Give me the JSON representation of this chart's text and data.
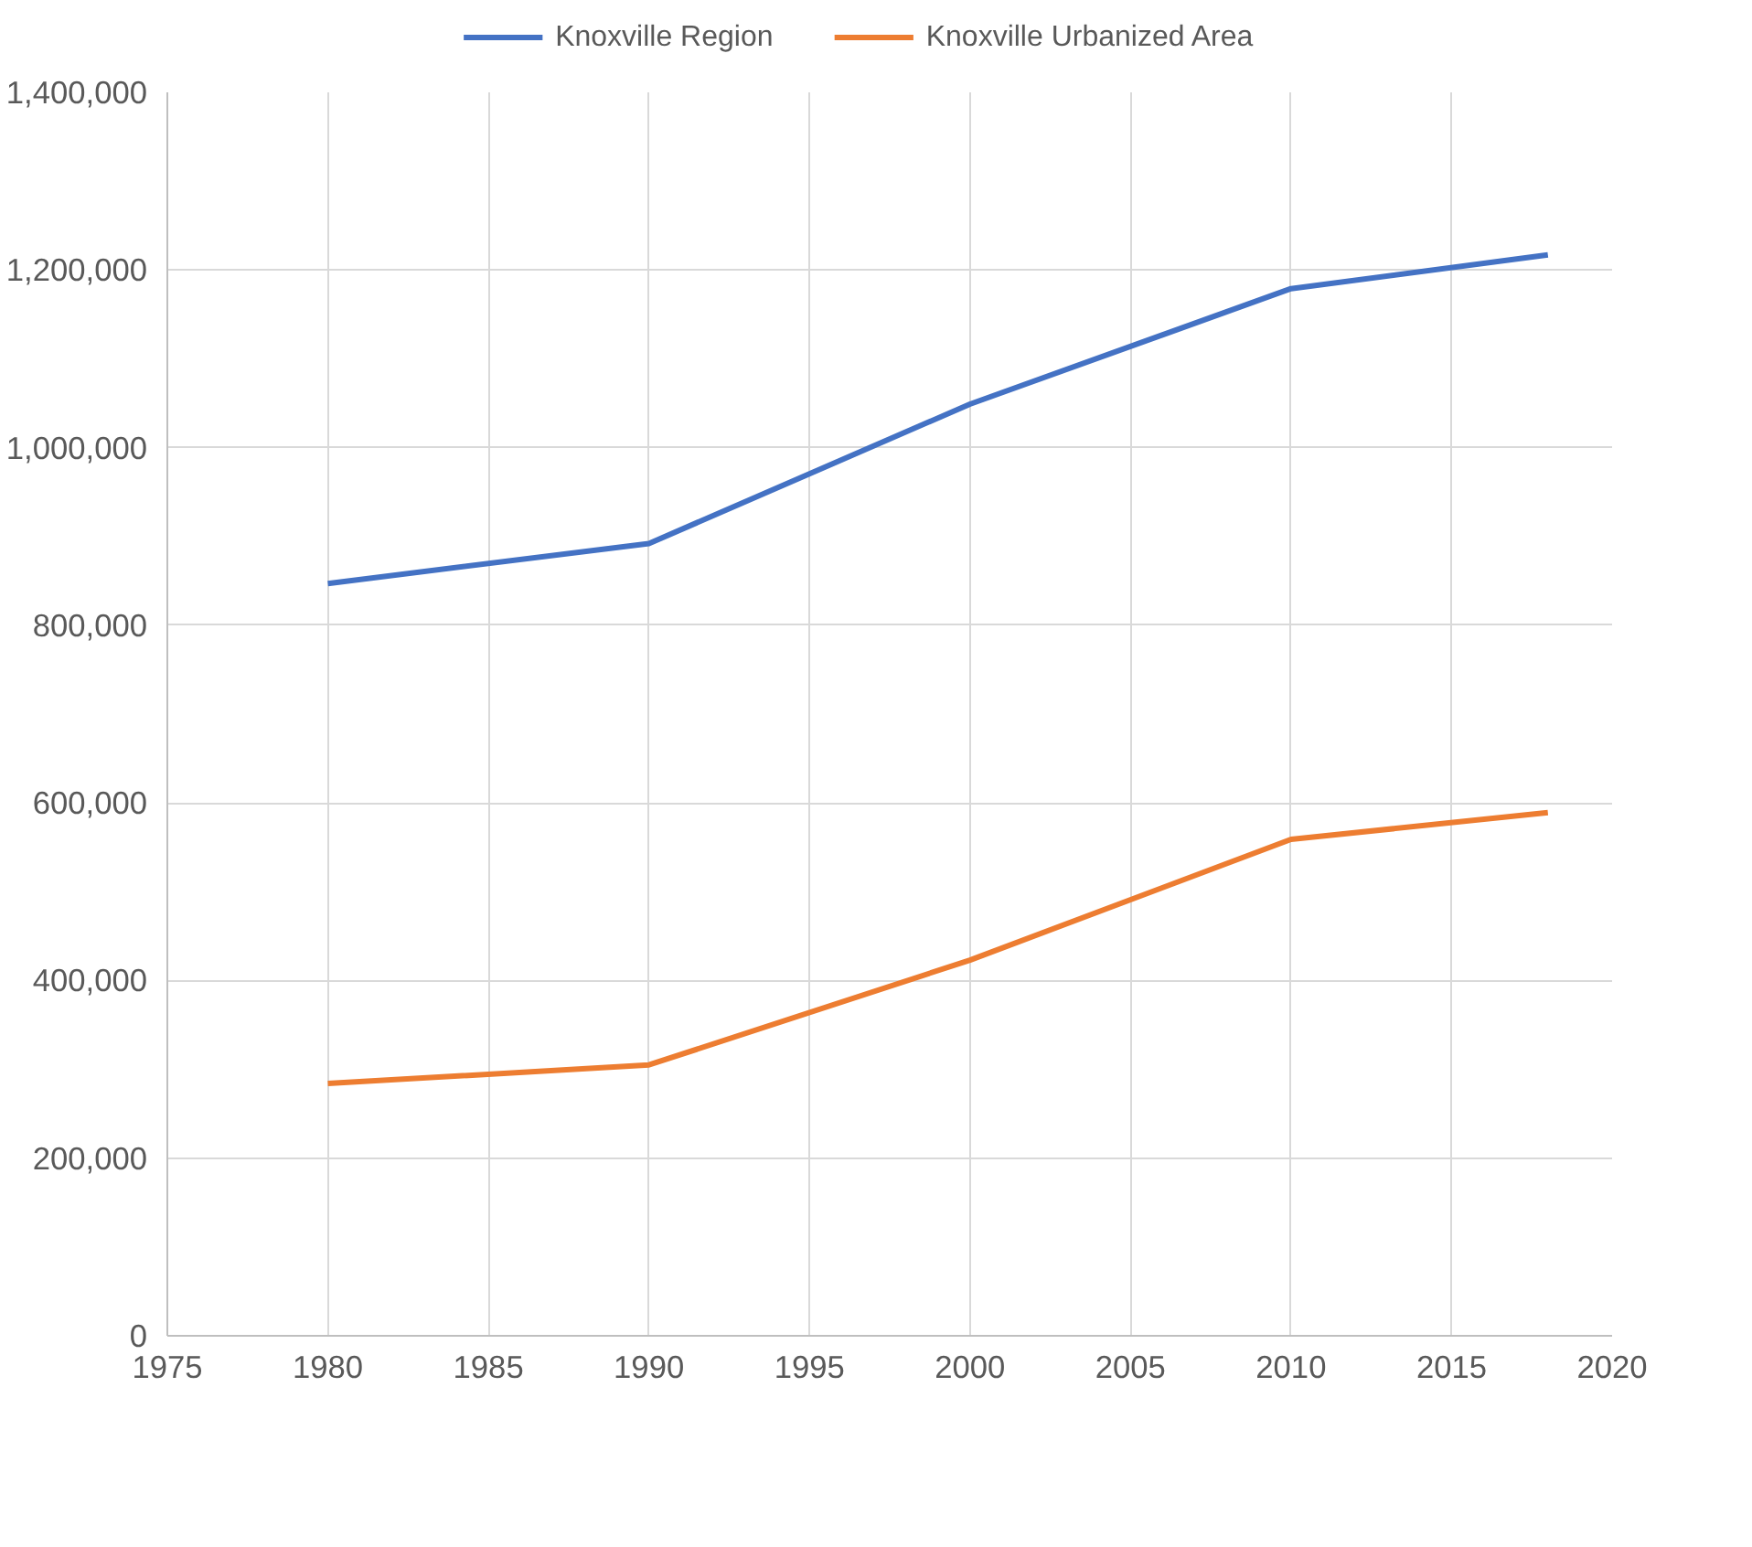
{
  "chart_data": {
    "type": "line",
    "x": [
      1980,
      1990,
      2000,
      2010,
      2018
    ],
    "series": [
      {
        "name": "Knoxville Region",
        "color": "#4472c4",
        "values": [
          847000,
          892000,
          1049000,
          1179000,
          1217000
        ]
      },
      {
        "name": "Knoxville Urbanized Area",
        "color": "#ed7d31",
        "values": [
          284000,
          305000,
          423000,
          559000,
          589000
        ]
      }
    ],
    "xlim": [
      1975,
      2020
    ],
    "xticks": [
      1975,
      1980,
      1985,
      1990,
      1995,
      2000,
      2005,
      2010,
      2015,
      2020
    ],
    "ylim": [
      0,
      1400000
    ],
    "yticks": [
      {
        "value": 0,
        "label": "0"
      },
      {
        "value": 200000,
        "label": "200,000"
      },
      {
        "value": 400000,
        "label": "400,000"
      },
      {
        "value": 600000,
        "label": "600,000"
      },
      {
        "value": 800000,
        "label": "800,000"
      },
      {
        "value": 1000000,
        "label": "1,000,000"
      },
      {
        "value": 1200000,
        "label": "1,200,000"
      },
      {
        "value": 1400000,
        "label": "1,400,000"
      }
    ],
    "grid": true,
    "legend": "top",
    "marker": "none",
    "line_style": "solid"
  }
}
